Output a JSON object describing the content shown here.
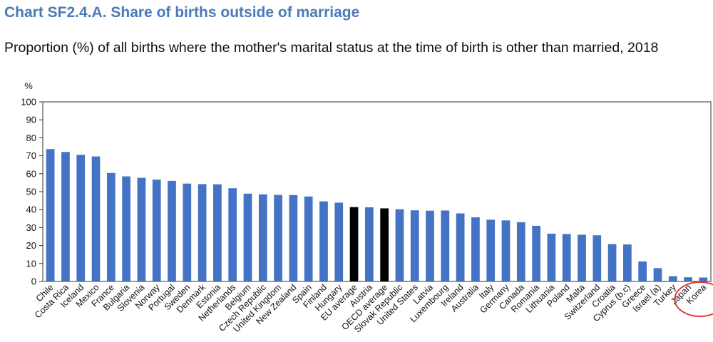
{
  "header": {
    "title": "Chart SF2.4.A. Share of births outside of marriage",
    "subtitle": "Proportion (%) of all births where the mother's marital status at the time of birth is other than married, 2018"
  },
  "colors": {
    "bar": "#4472c4",
    "bar_highlight": "#000000",
    "annotation_circle": "#e23b2e"
  },
  "chart_data": {
    "type": "bar",
    "title": "Chart SF2.4.A. Share of births outside of marriage",
    "subtitle": "Proportion (%) of all births where the mother's marital status at the time of birth is other than married, 2018",
    "ylabel": "%",
    "xlabel": "",
    "ylim": [
      0,
      100
    ],
    "yticks": [
      0,
      10,
      20,
      30,
      40,
      50,
      60,
      70,
      80,
      90,
      100
    ],
    "grid": false,
    "categories": [
      "Chile",
      "Costa Rica",
      "Iceland",
      "Mexico",
      "France",
      "Bulgaria",
      "Slovenia",
      "Norway",
      "Portugal",
      "Sweden",
      "Denmark",
      "Estonia",
      "Netherlands",
      "Belgium",
      "Czech Republic",
      "United Kingdom",
      "New Zealand",
      "Spain",
      "Finland",
      "Hungary",
      "EU average",
      "Austria",
      "OECD average",
      "Slovak Republic",
      "United States",
      "Latvia",
      "Luxembourg",
      "Ireland",
      "Australia",
      "Italy",
      "Germany",
      "Canada",
      "Romania",
      "Lithuania",
      "Poland",
      "Malta",
      "Switzerland",
      "Croatia",
      "Cyprus (b,c)",
      "Greece",
      "Israel (a)",
      "Turkey",
      "Japan",
      "Korea"
    ],
    "values": [
      73.7,
      72.1,
      70.5,
      69.6,
      60.4,
      58.5,
      57.7,
      56.7,
      56.0,
      54.5,
      54.2,
      54.1,
      51.9,
      48.9,
      48.5,
      48.2,
      48.1,
      47.3,
      44.6,
      43.9,
      41.4,
      41.3,
      40.7,
      40.2,
      39.6,
      39.4,
      39.5,
      37.9,
      35.7,
      34.4,
      34.0,
      33.0,
      31.0,
      26.6,
      26.4,
      26.0,
      25.7,
      20.8,
      20.6,
      11.1,
      7.4,
      2.9,
      2.3,
      2.2
    ],
    "highlighted": [
      "EU average",
      "OECD average"
    ],
    "circled": [
      "Japan",
      "Korea"
    ]
  }
}
